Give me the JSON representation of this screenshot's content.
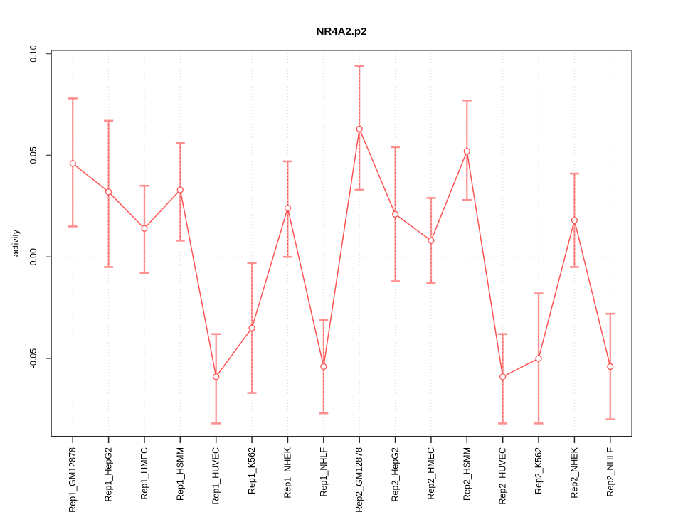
{
  "chart_data": {
    "type": "line",
    "title": "NR4A2.p2",
    "xlabel": "",
    "ylabel": "activity",
    "legend": "none",
    "marker": "open-circle",
    "categories": [
      "Rep1_GM12878",
      "Rep1_HepG2",
      "Rep1_HMEC",
      "Rep1_HSMM",
      "Rep1_HUVEC",
      "Rep1_K562",
      "Rep1_NHEK",
      "Rep1_NHLF",
      "Rep2_GM12878",
      "Rep2_HepG2",
      "Rep2_HMEC",
      "Rep2_HSMM",
      "Rep2_HUVEC",
      "Rep2_K562",
      "Rep2_NHEK",
      "Rep2_NHLF"
    ],
    "series": [
      {
        "name": "activity",
        "values": [
          0.046,
          0.032,
          0.014,
          0.033,
          -0.059,
          -0.035,
          0.024,
          -0.054,
          0.063,
          0.021,
          0.008,
          0.052,
          -0.059,
          -0.05,
          0.018,
          -0.054
        ],
        "error_low": [
          0.015,
          -0.005,
          -0.008,
          0.008,
          -0.082,
          -0.067,
          0.0,
          -0.077,
          0.033,
          -0.012,
          -0.013,
          0.028,
          -0.082,
          -0.082,
          -0.005,
          -0.08
        ],
        "error_high": [
          0.078,
          0.067,
          0.035,
          0.056,
          -0.038,
          -0.003,
          0.047,
          -0.031,
          0.094,
          0.054,
          0.029,
          0.077,
          -0.038,
          -0.018,
          0.041,
          -0.028
        ]
      }
    ],
    "y_ticks": [
      "0.10",
      "0.05",
      "0.00",
      "-0.05"
    ],
    "ylim": [
      -0.0885,
      0.1016
    ],
    "grid": {
      "vertical": "dotted line at every category",
      "horizontal": "dotted line at 0 only"
    }
  },
  "colors": {
    "series_line": "#FF5252",
    "error_bar": "#FFA3A3",
    "error_bar_dash": "#EF5350",
    "error_cap": "#FF8F8F",
    "marker_fill": "#FFFFFF",
    "gridline": "#D6D6D6",
    "box": "#8C8C8C",
    "axis_left": "#5A5A5A",
    "axis_bottom": "#262626",
    "text": "#000000"
  }
}
